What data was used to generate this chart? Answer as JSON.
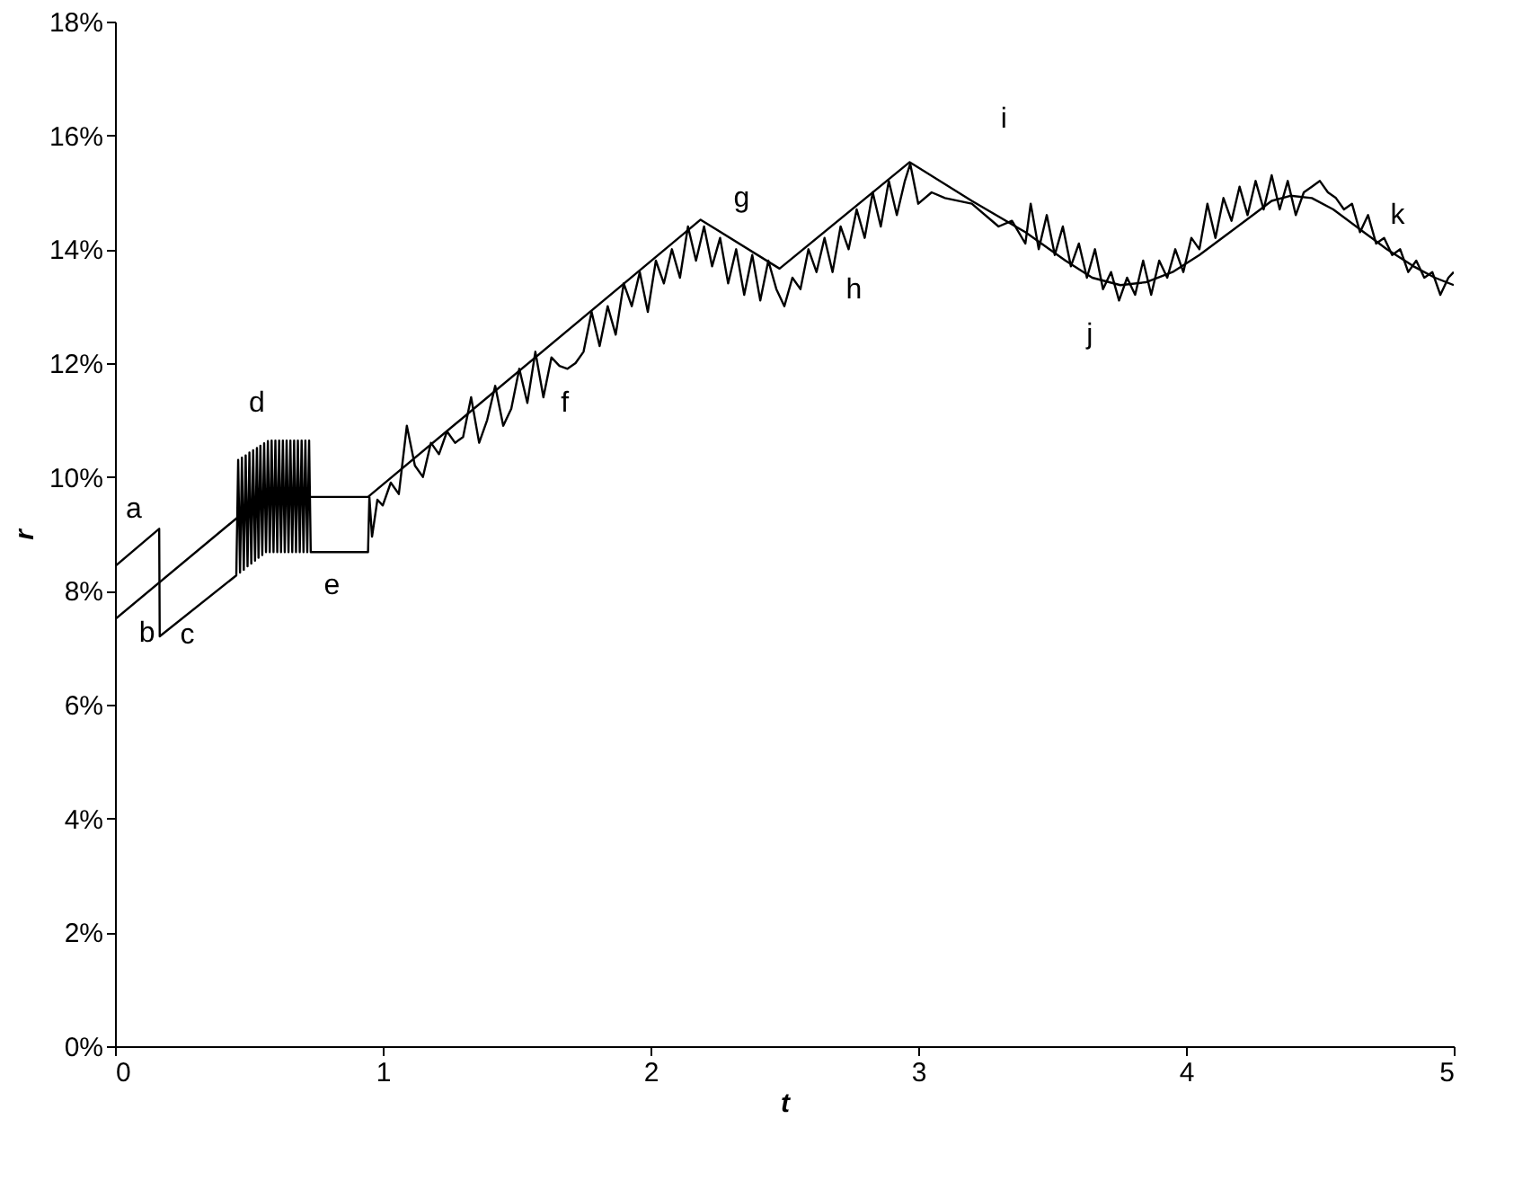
{
  "chart_data": {
    "type": "line",
    "xlabel": "t",
    "ylabel": "r",
    "xlim": [
      0,
      5
    ],
    "xticks": [
      0,
      1,
      2,
      3,
      4,
      5
    ],
    "ylim": [
      0,
      18
    ],
    "yticks": [
      {
        "value": 0,
        "label": "0%"
      },
      {
        "value": 2,
        "label": "2%"
      },
      {
        "value": 4,
        "label": "4%"
      },
      {
        "value": 6,
        "label": "6%"
      },
      {
        "value": 8,
        "label": "8%"
      },
      {
        "value": 10,
        "label": "10%"
      },
      {
        "value": 12,
        "label": "12%"
      },
      {
        "value": 14,
        "label": "14%"
      },
      {
        "value": 16,
        "label": "16%"
      },
      {
        "value": 18,
        "label": "18%"
      }
    ],
    "grid": false,
    "marker": "none",
    "line_style": "solid",
    "series": [
      {
        "color": "#000000",
        "x": [
          0,
          0.55,
          0.945,
          2.187,
          2.482,
          2.968,
          3.2,
          3.4,
          3.55,
          3.65,
          3.755,
          3.85,
          3.95,
          4.05,
          4.15,
          4.25,
          4.32,
          4.39,
          4.47,
          4.55,
          4.65,
          4.75,
          4.85,
          4.93,
          5.0
        ],
        "values": [
          7.5,
          9.65,
          9.65,
          14.52,
          13.66,
          15.53,
          14.85,
          14.3,
          13.8,
          13.5,
          13.37,
          13.42,
          13.6,
          13.9,
          14.25,
          14.6,
          14.85,
          14.94,
          14.9,
          14.7,
          14.35,
          14.0,
          13.7,
          13.5,
          13.37
        ]
      },
      {
        "color": "#000000",
        "x": [
          0,
          0.165,
          0.167,
          0.453,
          0.46,
          0.467,
          0.474,
          0.481,
          0.488,
          0.495,
          0.502,
          0.509,
          0.516,
          0.523,
          0.53,
          0.536,
          0.543,
          0.55,
          0.557,
          0.564,
          0.571,
          0.578,
          0.585,
          0.592,
          0.599,
          0.606,
          0.613,
          0.62,
          0.627,
          0.634,
          0.641,
          0.648,
          0.655,
          0.662,
          0.669,
          0.676,
          0.683,
          0.69,
          0.697,
          0.704,
          0.711,
          0.718,
          0.725,
          0.731,
          0.945,
          0.95,
          0.96,
          0.98,
          1.0,
          1.03,
          1.06,
          1.09,
          1.12,
          1.15,
          1.18,
          1.21,
          1.24,
          1.27,
          1.3,
          1.33,
          1.36,
          1.39,
          1.42,
          1.45,
          1.48,
          1.51,
          1.54,
          1.57,
          1.6,
          1.63,
          1.66,
          1.69,
          1.72,
          1.75,
          1.78,
          1.81,
          1.84,
          1.87,
          1.9,
          1.93,
          1.96,
          1.99,
          2.02,
          2.05,
          2.08,
          2.11,
          2.14,
          2.17,
          2.2,
          2.23,
          2.26,
          2.29,
          2.32,
          2.35,
          2.38,
          2.41,
          2.44,
          2.47,
          2.5,
          2.53,
          2.56,
          2.59,
          2.62,
          2.65,
          2.68,
          2.71,
          2.74,
          2.77,
          2.8,
          2.83,
          2.86,
          2.89,
          2.92,
          2.95,
          2.97,
          3.0,
          3.05,
          3.1,
          3.2,
          3.3,
          3.35,
          3.4,
          3.42,
          3.45,
          3.48,
          3.51,
          3.54,
          3.57,
          3.6,
          3.63,
          3.66,
          3.69,
          3.72,
          3.75,
          3.78,
          3.81,
          3.84,
          3.87,
          3.9,
          3.93,
          3.96,
          3.99,
          4.02,
          4.05,
          4.08,
          4.11,
          4.14,
          4.17,
          4.2,
          4.23,
          4.26,
          4.29,
          4.32,
          4.35,
          4.38,
          4.41,
          4.44,
          4.47,
          4.5,
          4.53,
          4.56,
          4.59,
          4.62,
          4.65,
          4.68,
          4.71,
          4.74,
          4.77,
          4.8,
          4.83,
          4.86,
          4.89,
          4.92,
          4.95,
          4.98,
          5.0
        ],
        "values": [
          8.43,
          9.09,
          7.2,
          8.27,
          10.3,
          8.32,
          10.34,
          8.37,
          10.38,
          8.43,
          10.43,
          8.48,
          10.47,
          8.53,
          10.51,
          8.58,
          10.55,
          8.63,
          10.59,
          8.68,
          10.63,
          8.68,
          10.64,
          8.68,
          10.64,
          8.68,
          10.64,
          8.68,
          10.64,
          8.68,
          10.64,
          8.68,
          10.64,
          8.68,
          10.64,
          8.68,
          10.64,
          8.68,
          10.64,
          8.68,
          10.64,
          8.68,
          10.64,
          8.68,
          8.68,
          9.65,
          8.95,
          9.6,
          9.5,
          9.9,
          9.7,
          10.9,
          10.2,
          10.0,
          10.6,
          10.4,
          10.8,
          10.6,
          10.7,
          11.4,
          10.6,
          11.0,
          11.6,
          10.9,
          11.2,
          11.9,
          11.3,
          12.2,
          11.4,
          12.1,
          11.95,
          11.9,
          12.0,
          12.2,
          12.9,
          12.3,
          13.0,
          12.5,
          13.4,
          13.0,
          13.6,
          12.9,
          13.8,
          13.4,
          14.0,
          13.5,
          14.4,
          13.8,
          14.4,
          13.7,
          14.2,
          13.4,
          14.0,
          13.2,
          13.9,
          13.1,
          13.8,
          13.3,
          13.0,
          13.5,
          13.3,
          14.0,
          13.6,
          14.2,
          13.6,
          14.4,
          14.0,
          14.7,
          14.2,
          15.0,
          14.4,
          15.2,
          14.6,
          15.2,
          15.5,
          14.8,
          15.0,
          14.9,
          14.8,
          14.4,
          14.5,
          14.1,
          14.8,
          14.0,
          14.6,
          13.9,
          14.4,
          13.7,
          14.1,
          13.5,
          14.0,
          13.3,
          13.6,
          13.1,
          13.5,
          13.2,
          13.8,
          13.2,
          13.8,
          13.5,
          14.0,
          13.6,
          14.2,
          14.0,
          14.8,
          14.2,
          14.9,
          14.5,
          15.1,
          14.6,
          15.2,
          14.7,
          15.3,
          14.7,
          15.2,
          14.6,
          15.0,
          15.1,
          15.2,
          15.0,
          14.9,
          14.7,
          14.8,
          14.3,
          14.6,
          14.1,
          14.2,
          13.9,
          14.0,
          13.6,
          13.8,
          13.5,
          13.6,
          13.2,
          13.5,
          13.6
        ]
      }
    ],
    "annotations": [
      "a",
      "b",
      "c",
      "d",
      "e",
      "f",
      "g",
      "h",
      "i",
      "j",
      "k"
    ]
  }
}
